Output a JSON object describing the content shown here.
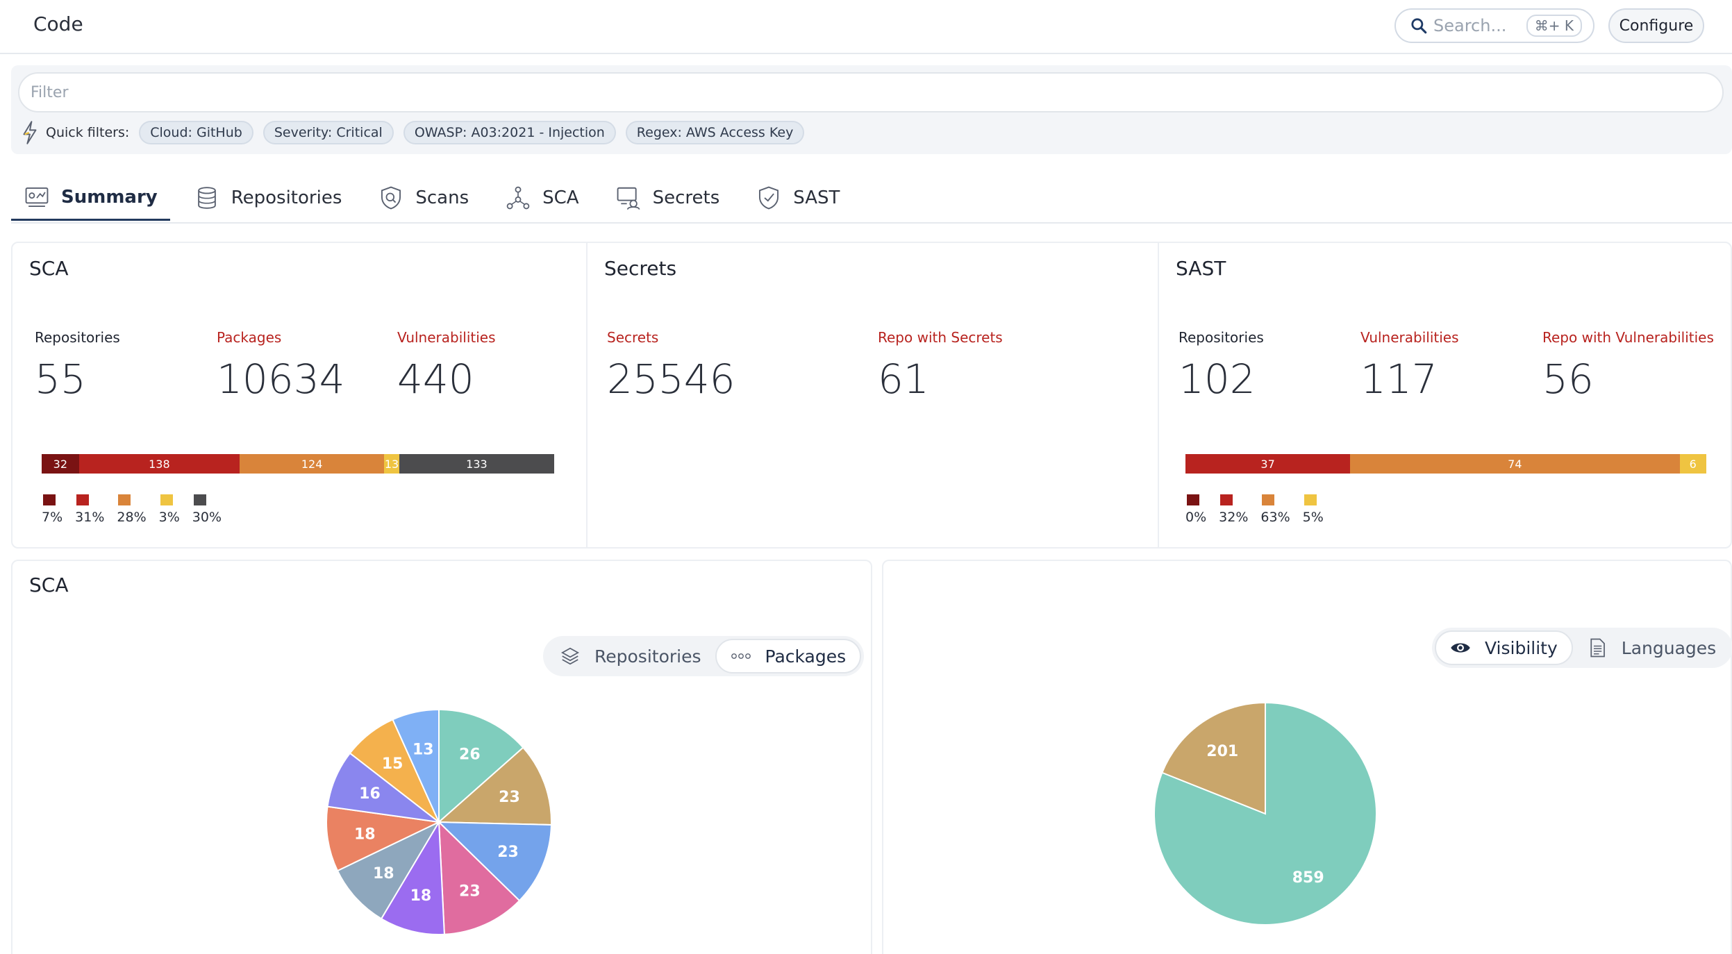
{
  "header": {
    "title": "Code",
    "search_placeholder": "Search...",
    "search_shortcut": "⌘+ K",
    "configure_label": "Configure"
  },
  "filter": {
    "placeholder": "Filter",
    "quick_label": "Quick filters:",
    "chips": [
      "Cloud: GitHub",
      "Severity: Critical",
      "OWASP: A03:2021 - Injection",
      "Regex: AWS Access Key"
    ]
  },
  "tabs": [
    {
      "label": "Summary",
      "icon": "dashboard-icon",
      "active": true
    },
    {
      "label": "Repositories",
      "icon": "database-icon"
    },
    {
      "label": "Scans",
      "icon": "shield-scan-icon"
    },
    {
      "label": "SCA",
      "icon": "network-nodes-icon"
    },
    {
      "label": "Secrets",
      "icon": "secret-agent-icon"
    },
    {
      "label": "SAST",
      "icon": "shield-check-icon"
    }
  ],
  "cards": {
    "sca": {
      "title": "SCA",
      "stats": [
        {
          "label": "Repositories",
          "value": "55"
        },
        {
          "label": "Packages",
          "value": "10634"
        },
        {
          "label": "Vulnerabilities",
          "value": "440"
        }
      ],
      "bar": [
        {
          "value": 32,
          "label": "32",
          "color": "#7a1313"
        },
        {
          "value": 138,
          "label": "138",
          "color": "#b8231f"
        },
        {
          "value": 124,
          "label": "124",
          "color": "#d9843a"
        },
        {
          "value": 13,
          "label": "13",
          "color": "#efc441"
        },
        {
          "value": 133,
          "label": "133",
          "color": "#4c4c4e"
        }
      ],
      "legend": [
        {
          "pct": "7%",
          "color": "#7a1313"
        },
        {
          "pct": "31%",
          "color": "#b8231f"
        },
        {
          "pct": "28%",
          "color": "#d9843a"
        },
        {
          "pct": "3%",
          "color": "#efc441"
        },
        {
          "pct": "30%",
          "color": "#4c4c4e"
        }
      ]
    },
    "secrets": {
      "title": "Secrets",
      "stats": [
        {
          "label": "Secrets",
          "value": "25546"
        },
        {
          "label": "Repo with Secrets",
          "value": "61"
        }
      ]
    },
    "sast": {
      "title": "SAST",
      "stats": [
        {
          "label": "Repositories",
          "value": "102"
        },
        {
          "label": "Vulnerabilities",
          "value": "117"
        },
        {
          "label": "Repo with Vulnerabilities",
          "value": "56"
        }
      ],
      "bar": [
        {
          "value": 37,
          "label": "37",
          "color": "#b8231f"
        },
        {
          "value": 74,
          "label": "74",
          "color": "#d9843a"
        },
        {
          "value": 6,
          "label": "6",
          "color": "#efc441"
        }
      ],
      "legend": [
        {
          "pct": "0%",
          "color": "#7a1313"
        },
        {
          "pct": "32%",
          "color": "#b8231f"
        },
        {
          "pct": "63%",
          "color": "#d9843a"
        },
        {
          "pct": "5%",
          "color": "#efc441"
        }
      ]
    }
  },
  "sca_chart": {
    "title": "SCA",
    "toggle": [
      {
        "label": "Repositories",
        "icon": "layers-icon",
        "on": false
      },
      {
        "label": "Packages",
        "icon": "dots-icon",
        "on": true
      }
    ]
  },
  "vis_chart": {
    "toggle": [
      {
        "label": "Visibility",
        "icon": "eye-icon",
        "on": true
      },
      {
        "label": "Languages",
        "icon": "document-icon",
        "on": false
      }
    ]
  },
  "chart_data": [
    {
      "type": "pie",
      "title": "SCA",
      "values": [
        26,
        23,
        23,
        23,
        18,
        18,
        18,
        16,
        15,
        13
      ],
      "colors": [
        "#7fcdbd",
        "#c9a66b",
        "#74a3eb",
        "#e06c9f",
        "#9b6cf0",
        "#8ea7bd",
        "#ea8262",
        "#8a86ee",
        "#f4b14d",
        "#7fb0f5"
      ]
    },
    {
      "type": "pie",
      "title": "",
      "values": [
        859,
        201
      ],
      "colors": [
        "#7fcdbd",
        "#c9a66b"
      ]
    }
  ]
}
